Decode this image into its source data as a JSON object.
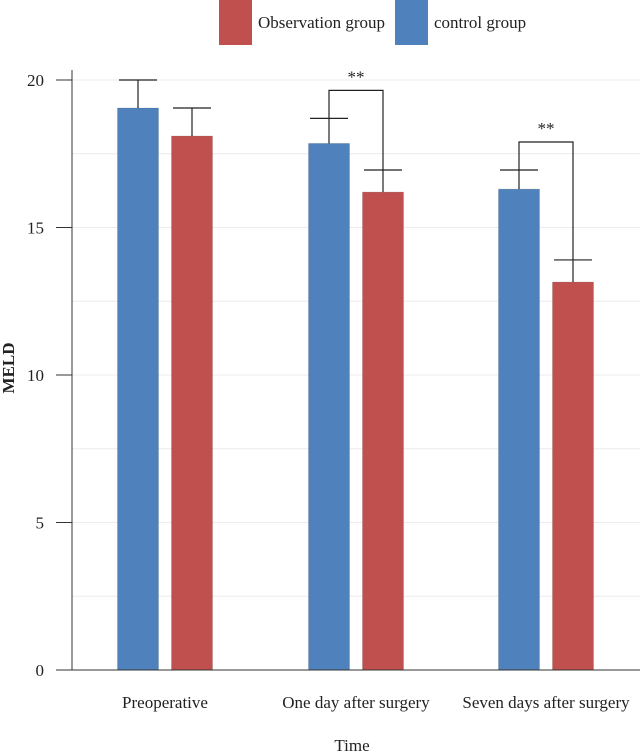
{
  "chart_data": {
    "type": "bar",
    "xlabel": "Time",
    "ylabel": "MELD",
    "ylim": [
      0,
      20
    ],
    "yticks": [
      0,
      5,
      10,
      15,
      20
    ],
    "grid": true,
    "legend_position": "top-center",
    "categories": [
      "Preoperative",
      "One day after surgery",
      "Seven days after surgery"
    ],
    "series": [
      {
        "name": "control group",
        "color": "#4f81bd",
        "values": [
          19.05,
          17.85,
          16.3
        ],
        "errors": [
          0.95,
          0.85,
          0.65
        ]
      },
      {
        "name": "Observation group",
        "color": "#c0504d",
        "values": [
          18.1,
          16.2,
          13.15
        ],
        "errors": [
          0.95,
          0.75,
          0.75
        ]
      }
    ],
    "legend_order": [
      "Observation group",
      "control group"
    ],
    "annotations": [
      {
        "category": "One day after surgery",
        "text": "**"
      },
      {
        "category": "Seven days after surgery",
        "text": "**"
      }
    ]
  }
}
